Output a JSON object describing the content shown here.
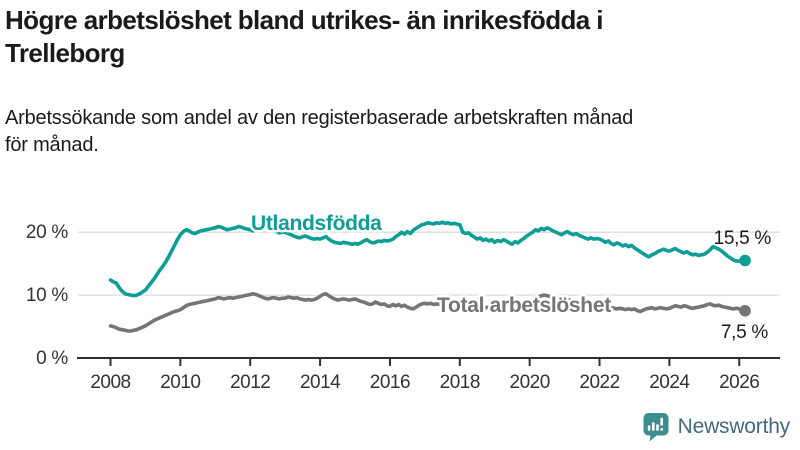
{
  "header": {
    "title_line1": "Högre arbetslöshet bland utrikes- än inrikesfödda i",
    "title_line2": "Trelleborg",
    "subtitle_line1": "Arbetssökande som andel av den registerbaserade arbetskraften månad",
    "subtitle_line2": "för månad."
  },
  "footer": {
    "brand_name": "Newsworthy",
    "brand_color": "#44697e",
    "icon_color": "#3d8d8f"
  },
  "chart_data": {
    "type": "line",
    "title": "Högre arbetslöshet bland utrikes- än inrikesfödda i Trelleborg",
    "xlabel": "",
    "ylabel": "Arbetssökande som andel av den registerbaserade arbetskraften",
    "x_tick_years": [
      2008,
      2010,
      2012,
      2014,
      2016,
      2018,
      2020,
      2022,
      2024,
      2026
    ],
    "y_ticks": [
      {
        "value": 0,
        "label": "0 %"
      },
      {
        "value": 10,
        "label": "10 %"
      },
      {
        "value": 20,
        "label": "20 %"
      }
    ],
    "ylim": [
      0,
      25.9
    ],
    "grid": "horizontal",
    "colors": {
      "gridline": "#dcdcdc",
      "axis": "#2f2f2f",
      "tick_label": "#333333",
      "value_label": "#1a1a1a"
    },
    "series": [
      {
        "name": "Utlandsfödda",
        "color": "#0d9e95",
        "end_label": "15,5 %",
        "end_value": 15.5,
        "start_year": 2008,
        "points_per_year": 12,
        "values": [
          12.4,
          12.1,
          11.9,
          11.2,
          10.6,
          10.2,
          10.1,
          10.0,
          9.9,
          10.0,
          10.2,
          10.5,
          10.8,
          11.4,
          12.0,
          12.6,
          13.3,
          14.0,
          14.6,
          15.3,
          16.1,
          17.0,
          17.9,
          18.8,
          19.6,
          20.1,
          20.4,
          20.2,
          19.9,
          19.8,
          20.0,
          20.2,
          20.3,
          20.4,
          20.5,
          20.6,
          20.7,
          20.9,
          20.8,
          20.6,
          20.4,
          20.5,
          20.6,
          20.7,
          20.9,
          20.8,
          20.6,
          20.5,
          20.4,
          20.2,
          20.5,
          20.8,
          21.4,
          22.3,
          21.6,
          20.9,
          20.4,
          20.1,
          19.9,
          20.0,
          20.0,
          19.8,
          19.6,
          19.4,
          19.2,
          19.1,
          19.3,
          19.4,
          19.2,
          19.0,
          18.9,
          19.0,
          18.9,
          19.1,
          19.3,
          18.9,
          18.6,
          18.4,
          18.3,
          18.2,
          18.4,
          18.3,
          18.2,
          18.1,
          18.2,
          18.1,
          18.3,
          18.6,
          18.8,
          18.5,
          18.3,
          18.4,
          18.6,
          18.5,
          18.7,
          18.6,
          18.7,
          18.9,
          19.3,
          19.6,
          20.0,
          19.7,
          20.1,
          19.8,
          20.3,
          20.6,
          20.9,
          21.2,
          21.3,
          21.5,
          21.4,
          21.3,
          21.5,
          21.4,
          21.6,
          21.4,
          21.5,
          21.3,
          21.4,
          21.3,
          21.2,
          20.0,
          19.8,
          19.9,
          19.5,
          19.2,
          18.9,
          19.1,
          18.7,
          18.9,
          18.6,
          18.8,
          18.4,
          18.7,
          18.5,
          18.8,
          18.6,
          18.3,
          18.1,
          18.5,
          18.3,
          18.7,
          19.0,
          19.4,
          19.7,
          20.0,
          20.4,
          20.2,
          20.6,
          20.4,
          20.7,
          20.5,
          20.2,
          20.0,
          19.8,
          19.6,
          19.9,
          20.1,
          19.8,
          19.6,
          19.8,
          19.5,
          19.3,
          19.1,
          18.9,
          19.1,
          18.9,
          19.0,
          18.9,
          18.7,
          18.4,
          18.6,
          18.2,
          18.0,
          18.3,
          18.1,
          17.8,
          18.0,
          17.7,
          17.9,
          17.5,
          17.2,
          16.9,
          16.6,
          16.3,
          16.1,
          16.4,
          16.6,
          16.9,
          17.1,
          17.3,
          17.1,
          17.0,
          17.2,
          17.4,
          17.1,
          16.9,
          16.7,
          16.9,
          16.6,
          16.4,
          16.5,
          16.3,
          16.4,
          16.5,
          16.8,
          17.2,
          17.7,
          17.5,
          17.3,
          17.0,
          16.6,
          16.2,
          15.9,
          15.6,
          15.4,
          15.4,
          15.6,
          15.5
        ]
      },
      {
        "name": "Total arbetslöshet",
        "color": "#757575",
        "end_label": "7,5 %",
        "end_value": 7.5,
        "start_year": 2008,
        "points_per_year": 12,
        "values": [
          5.1,
          5.0,
          4.8,
          4.6,
          4.5,
          4.4,
          4.3,
          4.3,
          4.4,
          4.5,
          4.7,
          4.9,
          5.1,
          5.4,
          5.7,
          6.0,
          6.2,
          6.4,
          6.6,
          6.8,
          7.0,
          7.2,
          7.4,
          7.5,
          7.7,
          8.0,
          8.3,
          8.5,
          8.6,
          8.7,
          8.8,
          8.9,
          9.0,
          9.1,
          9.2,
          9.3,
          9.4,
          9.6,
          9.5,
          9.4,
          9.5,
          9.6,
          9.5,
          9.6,
          9.7,
          9.8,
          9.9,
          10.0,
          10.1,
          10.2,
          10.1,
          9.9,
          9.7,
          9.5,
          9.4,
          9.5,
          9.6,
          9.5,
          9.4,
          9.5,
          9.5,
          9.7,
          9.6,
          9.5,
          9.6,
          9.4,
          9.3,
          9.2,
          9.3,
          9.2,
          9.3,
          9.5,
          9.8,
          10.1,
          10.2,
          9.9,
          9.6,
          9.4,
          9.2,
          9.3,
          9.4,
          9.3,
          9.2,
          9.3,
          9.4,
          9.2,
          9.0,
          8.9,
          8.7,
          8.5,
          8.6,
          8.9,
          8.7,
          8.5,
          8.6,
          8.3,
          8.2,
          8.5,
          8.3,
          8.5,
          8.2,
          8.4,
          8.1,
          7.9,
          7.8,
          8.1,
          8.4,
          8.6,
          8.7,
          8.6,
          8.7,
          8.5,
          8.6,
          8.5,
          8.4,
          8.5,
          8.4,
          8.3,
          8.4,
          8.5,
          8.4,
          8.3,
          8.2,
          8.1,
          8.2,
          8.0,
          7.9,
          8.0,
          8.1,
          8.0,
          8.1,
          8.0,
          8.0,
          8.1,
          8.2,
          8.3,
          8.4,
          8.3,
          8.4,
          8.5,
          8.6,
          8.7,
          8.7,
          8.8,
          8.8,
          9.0,
          9.4,
          9.7,
          9.9,
          10.0,
          9.9,
          9.8,
          9.7,
          9.6,
          9.5,
          9.4,
          9.5,
          9.3,
          9.2,
          9.0,
          8.9,
          8.8,
          8.7,
          8.6,
          8.5,
          8.4,
          8.3,
          8.4,
          8.4,
          8.3,
          8.2,
          8.1,
          8.0,
          7.9,
          7.8,
          7.9,
          7.8,
          7.7,
          7.8,
          7.7,
          7.8,
          7.5,
          7.4,
          7.6,
          7.8,
          7.9,
          8.0,
          7.8,
          7.9,
          8.0,
          7.9,
          7.8,
          7.9,
          8.1,
          8.3,
          8.2,
          8.1,
          8.3,
          8.2,
          8.0,
          7.9,
          8.0,
          8.1,
          8.2,
          8.3,
          8.5,
          8.6,
          8.4,
          8.3,
          8.4,
          8.2,
          8.1,
          8.0,
          7.9,
          7.8,
          7.9,
          7.8,
          7.6,
          7.5
        ]
      }
    ]
  }
}
